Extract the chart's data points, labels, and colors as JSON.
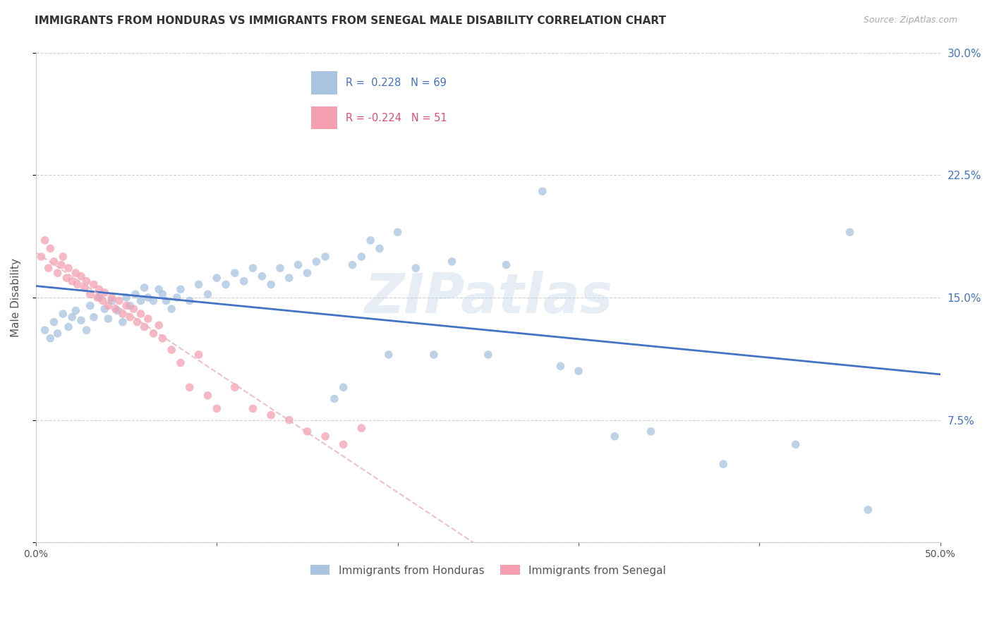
{
  "title": "IMMIGRANTS FROM HONDURAS VS IMMIGRANTS FROM SENEGAL MALE DISABILITY CORRELATION CHART",
  "source": "Source: ZipAtlas.com",
  "ylabel": "Male Disability",
  "xlim": [
    0.0,
    0.5
  ],
  "ylim": [
    0.0,
    0.3
  ],
  "xticks": [
    0.0,
    0.1,
    0.2,
    0.3,
    0.4,
    0.5
  ],
  "yticks": [
    0.0,
    0.075,
    0.15,
    0.225,
    0.3
  ],
  "ytick_labels_right": [
    "",
    "7.5%",
    "15.0%",
    "22.5%",
    "30.0%"
  ],
  "xtick_labels": [
    "0.0%",
    "",
    "",
    "",
    "",
    "50.0%"
  ],
  "legend_entries": [
    {
      "label": "Immigrants from Honduras",
      "color": "#a8c4e0"
    },
    {
      "label": "Immigrants from Senegal",
      "color": "#f4a0b0"
    }
  ],
  "r_honduras": 0.228,
  "n_honduras": 69,
  "r_senegal": -0.224,
  "n_senegal": 51,
  "blue_line_color": "#4472C4",
  "pink_line_color": "#e8b0c0",
  "watermark": "ZIPatlas",
  "background_color": "#ffffff",
  "grid_color": "#cccccc",
  "scatter_blue_color": "#a8c4e0",
  "scatter_pink_color": "#f4a0b0",
  "scatter_alpha": 0.75,
  "scatter_size": 70,
  "honduras_x": [
    0.005,
    0.008,
    0.01,
    0.012,
    0.015,
    0.018,
    0.02,
    0.022,
    0.025,
    0.028,
    0.03,
    0.032,
    0.035,
    0.038,
    0.04,
    0.042,
    0.045,
    0.048,
    0.05,
    0.052,
    0.055,
    0.058,
    0.06,
    0.062,
    0.065,
    0.068,
    0.07,
    0.072,
    0.075,
    0.078,
    0.08,
    0.085,
    0.09,
    0.095,
    0.1,
    0.105,
    0.11,
    0.115,
    0.12,
    0.125,
    0.13,
    0.135,
    0.14,
    0.145,
    0.15,
    0.155,
    0.16,
    0.165,
    0.17,
    0.175,
    0.18,
    0.185,
    0.19,
    0.195,
    0.2,
    0.21,
    0.22,
    0.23,
    0.25,
    0.26,
    0.28,
    0.29,
    0.3,
    0.32,
    0.34,
    0.38,
    0.42,
    0.45,
    0.46
  ],
  "honduras_y": [
    0.13,
    0.125,
    0.135,
    0.128,
    0.14,
    0.132,
    0.138,
    0.142,
    0.136,
    0.13,
    0.145,
    0.138,
    0.15,
    0.143,
    0.137,
    0.148,
    0.142,
    0.135,
    0.15,
    0.145,
    0.152,
    0.148,
    0.156,
    0.15,
    0.148,
    0.155,
    0.152,
    0.148,
    0.143,
    0.15,
    0.155,
    0.148,
    0.158,
    0.152,
    0.162,
    0.158,
    0.165,
    0.16,
    0.168,
    0.163,
    0.158,
    0.168,
    0.162,
    0.17,
    0.165,
    0.172,
    0.175,
    0.088,
    0.095,
    0.17,
    0.175,
    0.185,
    0.18,
    0.115,
    0.19,
    0.168,
    0.115,
    0.172,
    0.115,
    0.17,
    0.215,
    0.108,
    0.105,
    0.065,
    0.068,
    0.048,
    0.06,
    0.19,
    0.02
  ],
  "senegal_x": [
    0.003,
    0.005,
    0.007,
    0.008,
    0.01,
    0.012,
    0.014,
    0.015,
    0.017,
    0.018,
    0.02,
    0.022,
    0.023,
    0.025,
    0.027,
    0.028,
    0.03,
    0.032,
    0.034,
    0.035,
    0.037,
    0.038,
    0.04,
    0.042,
    0.044,
    0.046,
    0.048,
    0.05,
    0.052,
    0.054,
    0.056,
    0.058,
    0.06,
    0.062,
    0.065,
    0.068,
    0.07,
    0.075,
    0.08,
    0.085,
    0.09,
    0.095,
    0.1,
    0.11,
    0.12,
    0.13,
    0.14,
    0.15,
    0.16,
    0.17,
    0.18
  ],
  "senegal_y": [
    0.175,
    0.185,
    0.168,
    0.18,
    0.172,
    0.165,
    0.17,
    0.175,
    0.162,
    0.168,
    0.16,
    0.165,
    0.158,
    0.163,
    0.156,
    0.16,
    0.152,
    0.158,
    0.15,
    0.155,
    0.148,
    0.153,
    0.145,
    0.15,
    0.143,
    0.148,
    0.14,
    0.145,
    0.138,
    0.143,
    0.135,
    0.14,
    0.132,
    0.137,
    0.128,
    0.133,
    0.125,
    0.118,
    0.11,
    0.095,
    0.115,
    0.09,
    0.082,
    0.095,
    0.082,
    0.078,
    0.075,
    0.068,
    0.065,
    0.06,
    0.07
  ]
}
